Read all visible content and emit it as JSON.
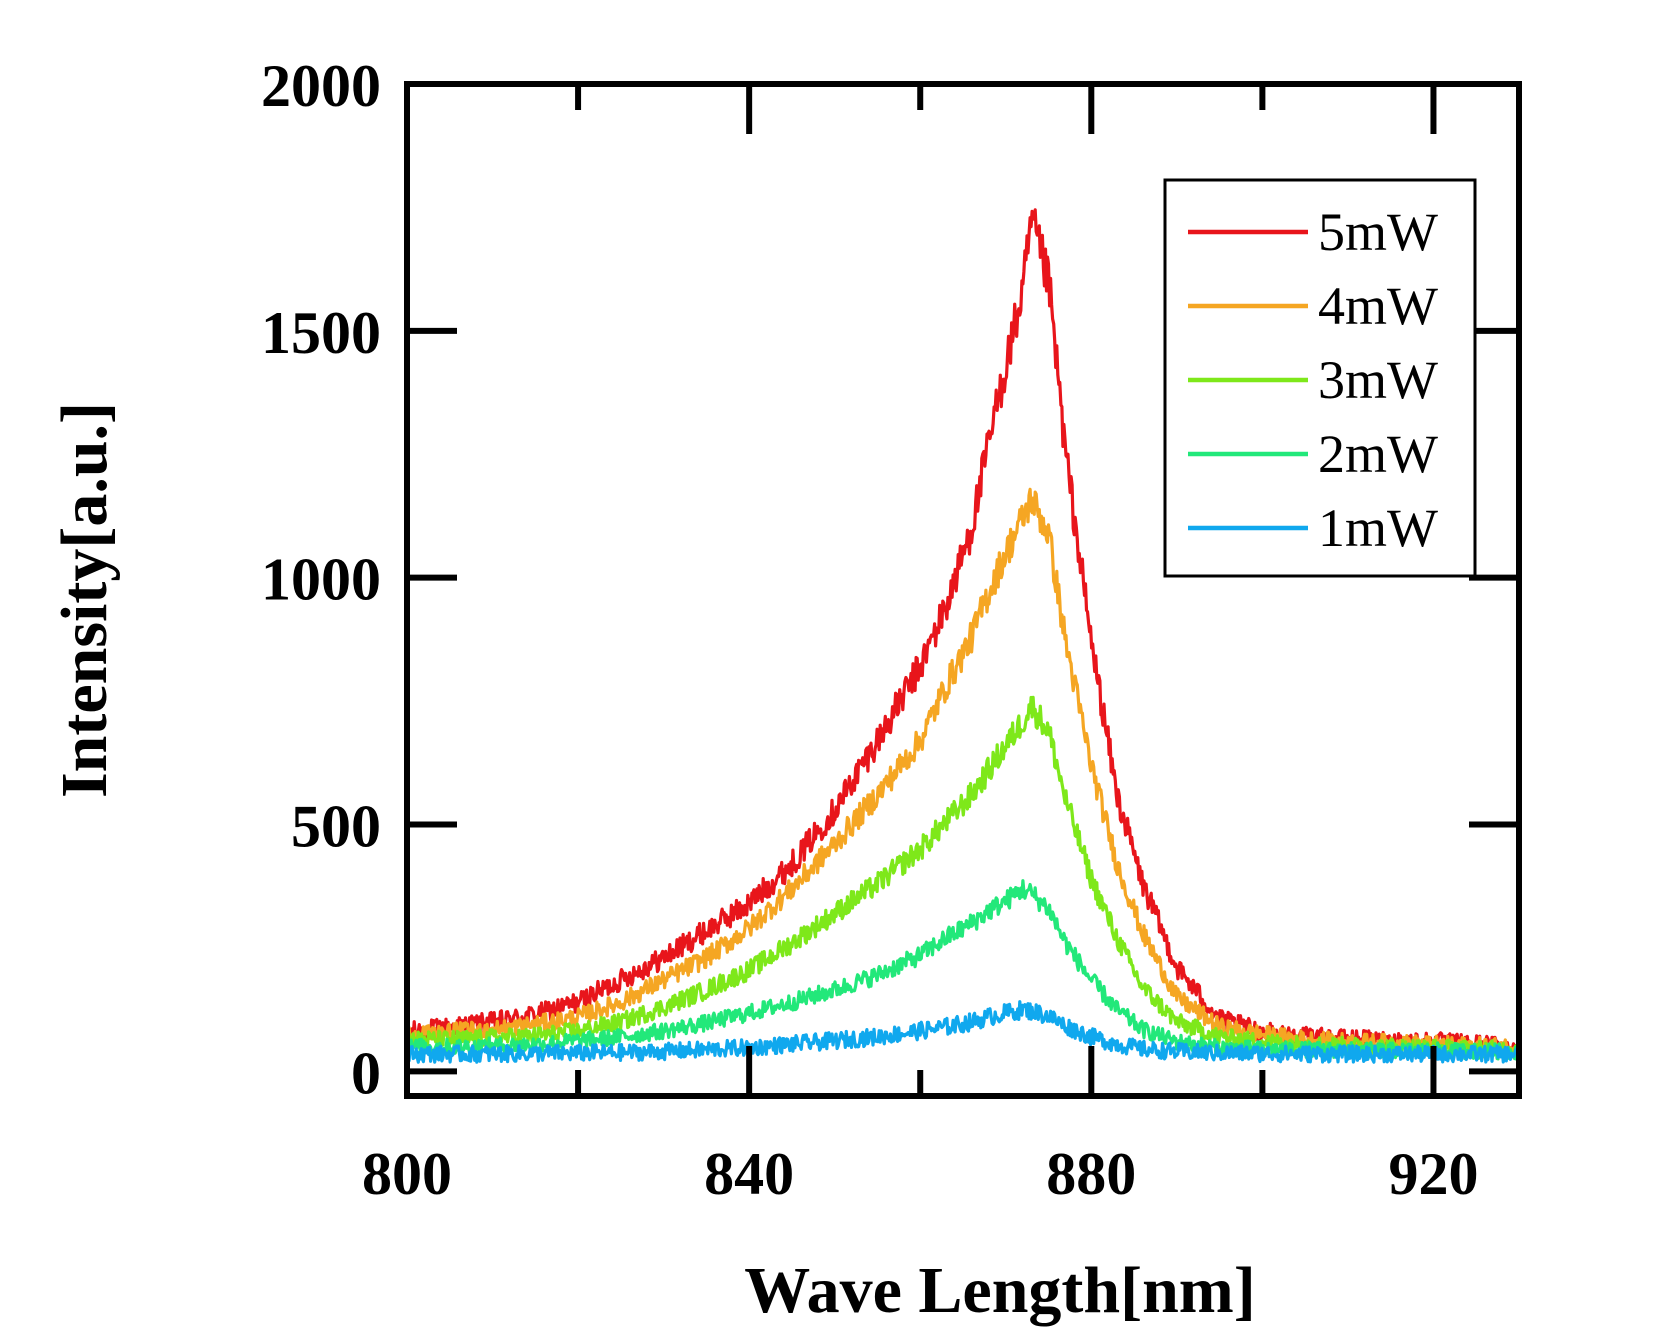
{
  "chart_data": {
    "type": "line",
    "xlabel": "Wave Length[nm]",
    "ylabel": "Intensity[a.u.]",
    "xlim": [
      800,
      930
    ],
    "ylim": [
      -50,
      2000
    ],
    "x_ticks": [
      800,
      840,
      880,
      920
    ],
    "y_ticks": [
      0,
      500,
      1000,
      1500,
      2000
    ],
    "x_tick_labels": [
      "800",
      "840",
      "880",
      "920"
    ],
    "y_tick_labels": [
      "0",
      "500",
      "1000",
      "1500",
      "2000"
    ],
    "grid": false,
    "legend_position": "top-right",
    "x": [
      800,
      805,
      810,
      815,
      820,
      825,
      830,
      835,
      840,
      845,
      850,
      855,
      860,
      863,
      866,
      868,
      870,
      872,
      873,
      875,
      877,
      880,
      883,
      886,
      890,
      895,
      900,
      905,
      910,
      915,
      920,
      925,
      930
    ],
    "series": [
      {
        "name": "5mW",
        "color": "#e8151b",
        "noise": 18,
        "values": [
          80,
          90,
          100,
          115,
          140,
          185,
          230,
          285,
          340,
          420,
          530,
          670,
          820,
          940,
          1100,
          1270,
          1430,
          1580,
          1720,
          1600,
          1250,
          870,
          560,
          380,
          210,
          105,
          80,
          70,
          65,
          62,
          60,
          55,
          50
        ]
      },
      {
        "name": "4mW",
        "color": "#f5a623",
        "noise": 16,
        "values": [
          75,
          80,
          85,
          95,
          110,
          140,
          185,
          230,
          290,
          370,
          460,
          560,
          670,
          780,
          880,
          970,
          1050,
          1120,
          1160,
          1090,
          870,
          620,
          420,
          280,
          150,
          90,
          75,
          65,
          60,
          58,
          55,
          52,
          50
        ]
      },
      {
        "name": "3mW",
        "color": "#7ee81a",
        "noise": 16,
        "values": [
          65,
          65,
          68,
          72,
          82,
          100,
          130,
          165,
          205,
          260,
          320,
          380,
          450,
          505,
          560,
          610,
          660,
          710,
          740,
          690,
          550,
          390,
          270,
          170,
          100,
          70,
          60,
          55,
          52,
          50,
          48,
          46,
          45
        ]
      },
      {
        "name": "2mW",
        "color": "#22e87a",
        "noise": 15,
        "values": [
          50,
          50,
          52,
          55,
          62,
          70,
          82,
          98,
          118,
          140,
          165,
          195,
          235,
          270,
          300,
          325,
          345,
          370,
          360,
          330,
          260,
          185,
          125,
          85,
          60,
          48,
          45,
          44,
          43,
          42,
          42,
          41,
          40
        ]
      },
      {
        "name": "1mW",
        "color": "#10a8ee",
        "noise": 16,
        "values": [
          35,
          35,
          35,
          36,
          37,
          38,
          40,
          44,
          48,
          55,
          62,
          70,
          82,
          90,
          100,
          110,
          118,
          125,
          122,
          112,
          92,
          70,
          55,
          45,
          40,
          37,
          36,
          35,
          35,
          35,
          35,
          35,
          35
        ]
      }
    ]
  }
}
